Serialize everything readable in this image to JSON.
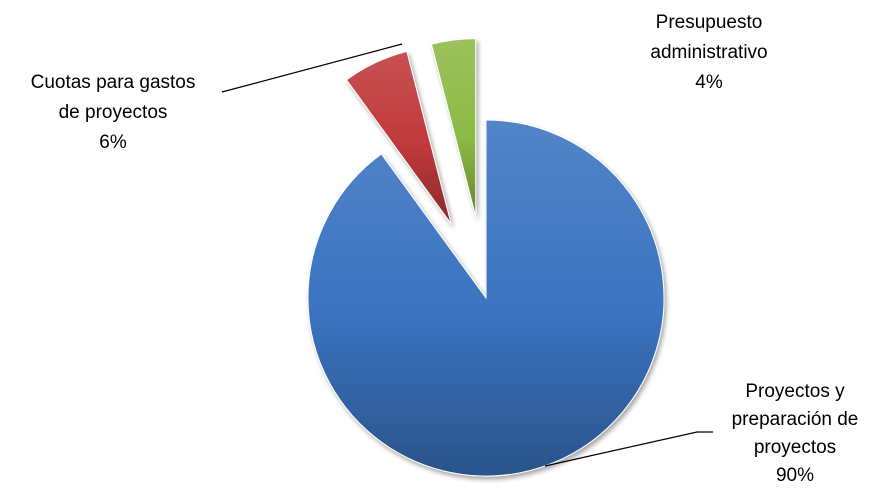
{
  "chart_data": {
    "type": "pie",
    "title": "",
    "slices": [
      {
        "label_lines": [
          "Proyectos y",
          "preparación de",
          "proyectos"
        ],
        "percent_label": "90%",
        "value": 90,
        "color": "#3a73c0"
      },
      {
        "label_lines": [
          "Cuotas para gastos",
          "de proyectos"
        ],
        "percent_label": "6%",
        "value": 6,
        "color": "#c0393a"
      },
      {
        "label_lines": [
          "Presupuesto",
          "administrativo"
        ],
        "percent_label": "4%",
        "value": 4,
        "color": "#8dba45"
      }
    ],
    "exploded": true,
    "legend": "none",
    "style": "3d-shaded"
  }
}
